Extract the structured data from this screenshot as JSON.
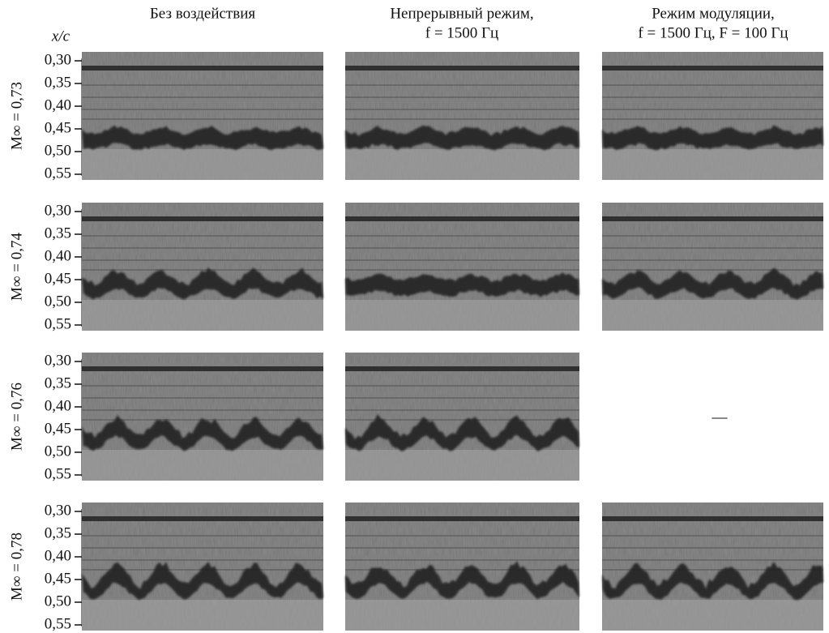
{
  "header": {
    "axis_label": "x/c",
    "columns": [
      {
        "lines": [
          "Без воздействия"
        ]
      },
      {
        "lines": [
          "Непрерывный режим,",
          "f = 1500 Гц"
        ]
      },
      {
        "lines": [
          "Режим модуляции,",
          "f = 1500 Гц, F = 100 Гц"
        ]
      }
    ]
  },
  "ticks": [
    "0,30",
    "0,35",
    "0,40",
    "0,45",
    "0,50",
    "0,55"
  ],
  "rows": [
    {
      "label": "M∞ = 0,73"
    },
    {
      "label": "M∞ = 0,74"
    },
    {
      "label": "M∞ = 0,76"
    },
    {
      "label": "M∞ = 0,78"
    }
  ],
  "placeholder": "—"
}
